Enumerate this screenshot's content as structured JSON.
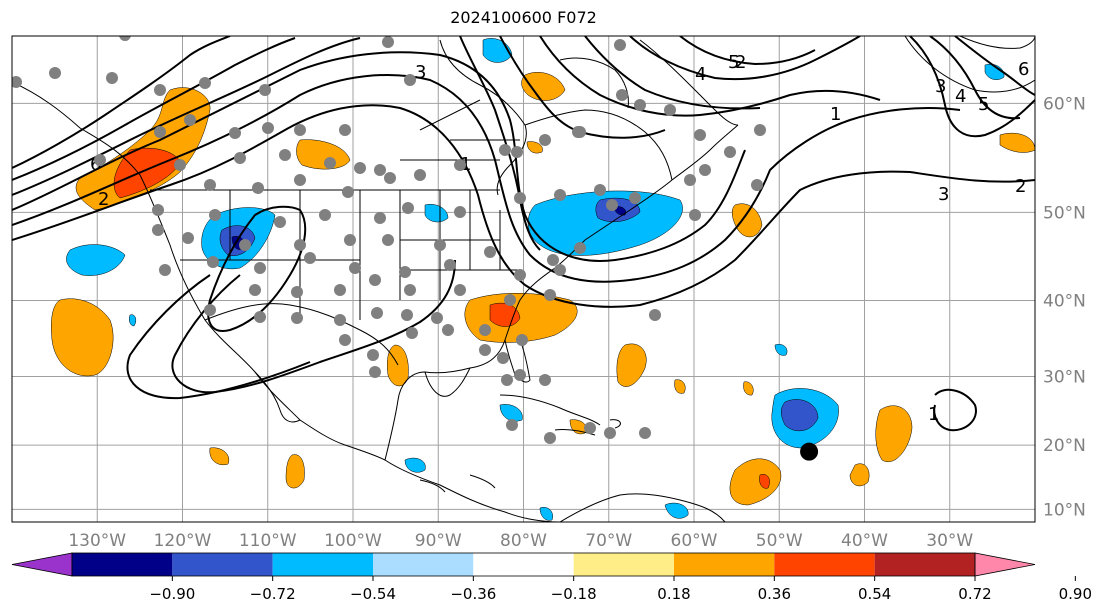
{
  "title": "2024100600 F072",
  "map": {
    "lon_labels": [
      "130°W",
      "120°W",
      "110°W",
      "100°W",
      "90°W",
      "80°W",
      "70°W",
      "60°W",
      "50°W",
      "40°W",
      "30°W"
    ],
    "lat_labels": [
      "60°N",
      "50°N",
      "40°N",
      "30°N",
      "20°N",
      "10°N"
    ],
    "lon_range": [
      -140,
      -20
    ],
    "lat_range": [
      8,
      65
    ],
    "gridlines": true,
    "contour_labels": [
      "1",
      "2",
      "3",
      "4",
      "5",
      "6",
      "2",
      "3",
      "4",
      "5",
      "6",
      "1",
      "2",
      "3",
      "1"
    ],
    "storm_marker": {
      "lon": -46.5,
      "lat": 19
    }
  },
  "colorbar": {
    "tick_labels": [
      "−0.90",
      "−0.72",
      "−0.54",
      "−0.36",
      "−0.18",
      "0.18",
      "0.36",
      "0.54",
      "0.72",
      "0.90"
    ],
    "colors": [
      "#9933cc",
      "#000088",
      "#3355cc",
      "#00bbff",
      "#aaddff",
      "#ffffff",
      "#ffee88",
      "#ffa500",
      "#ff4400",
      "#b22222",
      "#ff88aa"
    ],
    "extend": "both"
  },
  "colors": {
    "orange": "#ffa500",
    "red_orange": "#ff4400",
    "light_blue": "#00bbff",
    "pale_blue": "#aaddff",
    "mid_blue": "#3355cc",
    "navy": "#000088",
    "station_gray": "#808080"
  }
}
